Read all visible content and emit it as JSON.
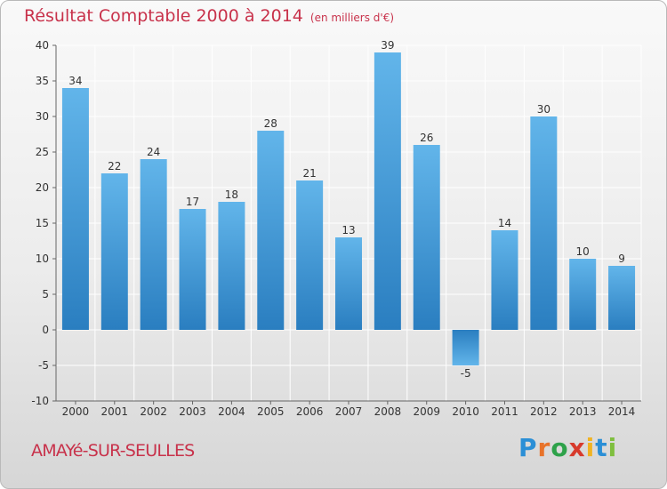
{
  "chart_data": {
    "type": "bar",
    "title": "Résultat Comptable 2000 à 2014",
    "unit": "(en milliers d'€)",
    "categories": [
      "2000",
      "2001",
      "2002",
      "2003",
      "2004",
      "2005",
      "2006",
      "2007",
      "2008",
      "2009",
      "2010",
      "2011",
      "2012",
      "2013",
      "2014"
    ],
    "values": [
      34,
      22,
      24,
      17,
      18,
      28,
      21,
      13,
      39,
      26,
      -5,
      14,
      30,
      10,
      9
    ],
    "ylim": [
      -10,
      40
    ],
    "yticks": [
      -10,
      -5,
      0,
      5,
      10,
      15,
      20,
      25,
      30,
      35,
      40
    ],
    "grid": true,
    "xlabel": "",
    "ylabel": ""
  },
  "footer": {
    "town": "AMAYé-SUR-SEULLES",
    "logo_letters": [
      "P",
      "r",
      "o",
      "x",
      "i",
      "t",
      "i"
    ],
    "logo_colors": [
      "#2b8fd6",
      "#e8732a",
      "#2ea24a",
      "#d73a2c",
      "#f0b323",
      "#2b8fd6",
      "#7fbf3f"
    ]
  },
  "colors": {
    "title": "#c8324b",
    "bar_top": "#62b5ea",
    "bar_bottom": "#2a7ec0"
  }
}
